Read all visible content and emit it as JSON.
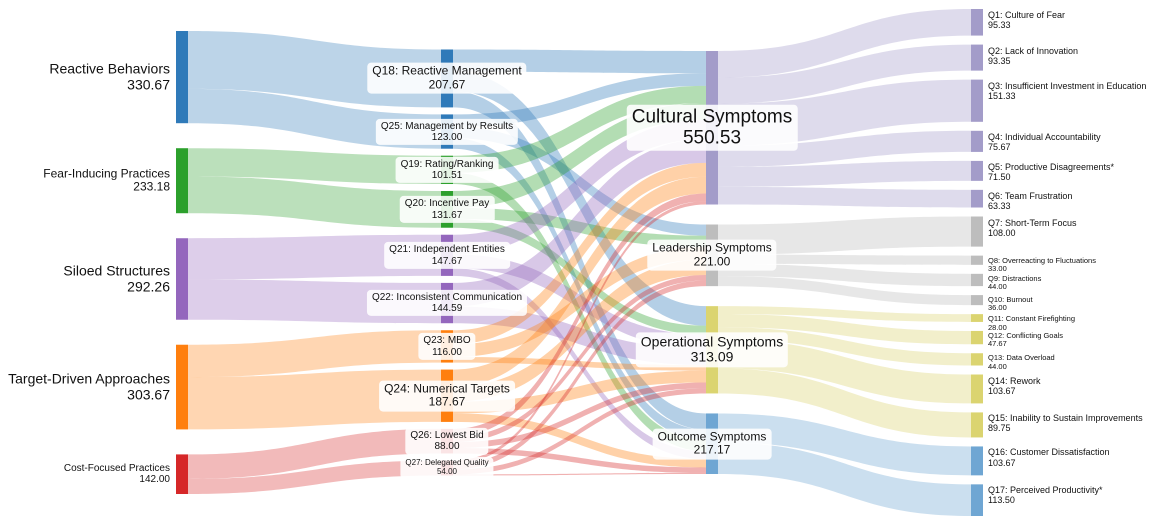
{
  "chart_data": {
    "type": "sankey",
    "title": "",
    "colors": {
      "blue": "#2f7ab9",
      "green": "#2ca02c",
      "purple": "#9467bd",
      "orange": "#ff7f0e",
      "red": "#d62728",
      "cultural": "#a39cc9",
      "leadership": "#bdbdbd",
      "operational": "#dbd470",
      "outcome": "#6fa6d3"
    },
    "nodes": [
      {
        "id": "rb",
        "name": "Reactive Behaviors",
        "value": "330.67",
        "column": 0,
        "color": "blue"
      },
      {
        "id": "fi",
        "name": "Fear-Inducing Practices",
        "value": "233.18",
        "column": 0,
        "color": "green"
      },
      {
        "id": "ss",
        "name": "Siloed Structures",
        "value": "292.26",
        "column": 0,
        "color": "purple"
      },
      {
        "id": "td",
        "name": "Target-Driven Approaches",
        "value": "303.67",
        "column": 0,
        "color": "orange"
      },
      {
        "id": "cf",
        "name": "Cost-Focused Practices",
        "value": "142.00",
        "column": 0,
        "color": "red"
      },
      {
        "id": "q18",
        "name": "Q18: Reactive Management",
        "value": "207.67",
        "column": 1,
        "color": "blue"
      },
      {
        "id": "q25",
        "name": "Q25: Management by Results",
        "value": "123.00",
        "column": 1,
        "color": "blue"
      },
      {
        "id": "q19",
        "name": "Q19: Rating/Ranking",
        "value": "101.51",
        "column": 1,
        "color": "green"
      },
      {
        "id": "q20",
        "name": "Q20: Incentive Pay",
        "value": "131.67",
        "column": 1,
        "color": "green"
      },
      {
        "id": "q21",
        "name": "Q21: Independent Entities",
        "value": "147.67",
        "column": 1,
        "color": "purple"
      },
      {
        "id": "q22",
        "name": "Q22: Inconsistent Communication",
        "value": "144.59",
        "column": 1,
        "color": "purple"
      },
      {
        "id": "q23",
        "name": "Q23: MBO",
        "value": "116.00",
        "column": 1,
        "color": "orange"
      },
      {
        "id": "q24",
        "name": "Q24: Numerical Targets",
        "value": "187.67",
        "column": 1,
        "color": "orange"
      },
      {
        "id": "q26",
        "name": "Q26: Lowest Bid",
        "value": "88.00",
        "column": 1,
        "color": "red"
      },
      {
        "id": "q27",
        "name": "Q27: Delegated Quality",
        "value": "54.00",
        "column": 1,
        "color": "red"
      },
      {
        "id": "cs",
        "name": "Cultural Symptoms",
        "value": "550.53",
        "column": 2,
        "color": "cultural"
      },
      {
        "id": "ls",
        "name": "Leadership Symptoms",
        "value": "221.00",
        "column": 2,
        "color": "leadership"
      },
      {
        "id": "os",
        "name": "Operational Symptoms",
        "value": "313.09",
        "column": 2,
        "color": "operational"
      },
      {
        "id": "oc",
        "name": "Outcome Symptoms",
        "value": "217.17",
        "column": 2,
        "color": "outcome"
      },
      {
        "id": "q1",
        "name": "Q1: Culture of Fear",
        "value": "95.33",
        "column": 3,
        "color": "cultural"
      },
      {
        "id": "q2",
        "name": "Q2: Lack of Innovation",
        "value": "93.35",
        "column": 3,
        "color": "cultural"
      },
      {
        "id": "q3",
        "name": "Q3: Insufficient Investment in Education",
        "value": "151.33",
        "column": 3,
        "color": "cultural"
      },
      {
        "id": "q4",
        "name": "Q4: Individual Accountability",
        "value": "75.67",
        "column": 3,
        "color": "cultural"
      },
      {
        "id": "q5",
        "name": "Q5: Productive Disagreements*",
        "value": "71.50",
        "column": 3,
        "color": "cultural"
      },
      {
        "id": "q6",
        "name": "Q6: Team Frustration",
        "value": "63.33",
        "column": 3,
        "color": "cultural"
      },
      {
        "id": "q7",
        "name": "Q7: Short-Term Focus",
        "value": "108.00",
        "column": 3,
        "color": "leadership"
      },
      {
        "id": "q8",
        "name": "Q8: Overreacting to Fluctuations",
        "value": "33.00",
        "column": 3,
        "color": "leadership"
      },
      {
        "id": "q9",
        "name": "Q9: Distractions",
        "value": "44.00",
        "column": 3,
        "color": "leadership"
      },
      {
        "id": "q10",
        "name": "Q10: Burnout",
        "value": "36.00",
        "column": 3,
        "color": "leadership"
      },
      {
        "id": "q11",
        "name": "Q11: Constant Firefighting",
        "value": "28.00",
        "column": 3,
        "color": "operational"
      },
      {
        "id": "q12",
        "name": "Q12: Conflicting Goals",
        "value": "47.67",
        "column": 3,
        "color": "operational"
      },
      {
        "id": "q13",
        "name": "Q13: Data Overload",
        "value": "44.00",
        "column": 3,
        "color": "operational"
      },
      {
        "id": "q14",
        "name": "Q14: Rework",
        "value": "103.67",
        "column": 3,
        "color": "operational"
      },
      {
        "id": "q15",
        "name": "Q15: Inability to Sustain Improvements",
        "value": "89.75",
        "column": 3,
        "color": "operational"
      },
      {
        "id": "q16",
        "name": "Q16: Customer Dissatisfaction",
        "value": "103.67",
        "column": 3,
        "color": "outcome"
      },
      {
        "id": "q17",
        "name": "Q17: Perceived Productivity*",
        "value": "113.50",
        "column": 3,
        "color": "outcome"
      }
    ],
    "links": [
      {
        "source": "rb",
        "target": "q18",
        "value": 207.67
      },
      {
        "source": "rb",
        "target": "q25",
        "value": 123.0
      },
      {
        "source": "fi",
        "target": "q19",
        "value": 101.51
      },
      {
        "source": "fi",
        "target": "q20",
        "value": 131.67
      },
      {
        "source": "ss",
        "target": "q21",
        "value": 147.67
      },
      {
        "source": "ss",
        "target": "q22",
        "value": 144.59
      },
      {
        "source": "td",
        "target": "q23",
        "value": 116.0
      },
      {
        "source": "td",
        "target": "q24",
        "value": 187.67
      },
      {
        "source": "cf",
        "target": "q26",
        "value": 88.0
      },
      {
        "source": "cf",
        "target": "q27",
        "value": 54.0
      },
      {
        "source": "q18",
        "target": "cs",
        "value": 80
      },
      {
        "source": "q18",
        "target": "os",
        "value": 70
      },
      {
        "source": "q18",
        "target": "oc",
        "value": 57.67
      },
      {
        "source": "q25",
        "target": "cs",
        "value": 45
      },
      {
        "source": "q25",
        "target": "ls",
        "value": 40
      },
      {
        "source": "q25",
        "target": "oc",
        "value": 38
      },
      {
        "source": "q19",
        "target": "cs",
        "value": 61.51
      },
      {
        "source": "q19",
        "target": "oc",
        "value": 40
      },
      {
        "source": "q20",
        "target": "cs",
        "value": 60
      },
      {
        "source": "q20",
        "target": "ls",
        "value": 40
      },
      {
        "source": "q20",
        "target": "os",
        "value": 31.67
      },
      {
        "source": "q21",
        "target": "cs",
        "value": 70
      },
      {
        "source": "q21",
        "target": "os",
        "value": 50
      },
      {
        "source": "q21",
        "target": "oc",
        "value": 27.67
      },
      {
        "source": "q22",
        "target": "cs",
        "value": 84.59
      },
      {
        "source": "q22",
        "target": "os",
        "value": 60
      },
      {
        "source": "q23",
        "target": "cs",
        "value": 50
      },
      {
        "source": "q23",
        "target": "ls",
        "value": 46
      },
      {
        "source": "q23",
        "target": "os",
        "value": 20
      },
      {
        "source": "q24",
        "target": "cs",
        "value": 60
      },
      {
        "source": "q24",
        "target": "ls",
        "value": 55
      },
      {
        "source": "q24",
        "target": "os",
        "value": 42.25
      },
      {
        "source": "q24",
        "target": "oc",
        "value": 30.42
      },
      {
        "source": "q26",
        "target": "cs",
        "value": 27.43
      },
      {
        "source": "q26",
        "target": "ls",
        "value": 20
      },
      {
        "source": "q26",
        "target": "os",
        "value": 21.17
      },
      {
        "source": "q26",
        "target": "oc",
        "value": 19.4
      },
      {
        "source": "q27",
        "target": "cs",
        "value": 12
      },
      {
        "source": "q27",
        "target": "ls",
        "value": 20
      },
      {
        "source": "q27",
        "target": "os",
        "value": 18
      },
      {
        "source": "q27",
        "target": "oc",
        "value": 4
      },
      {
        "source": "cs",
        "target": "q1",
        "value": 95.33
      },
      {
        "source": "cs",
        "target": "q2",
        "value": 93.35
      },
      {
        "source": "cs",
        "target": "q3",
        "value": 151.33
      },
      {
        "source": "cs",
        "target": "q4",
        "value": 75.67
      },
      {
        "source": "cs",
        "target": "q5",
        "value": 71.5
      },
      {
        "source": "cs",
        "target": "q6",
        "value": 63.33
      },
      {
        "source": "ls",
        "target": "q7",
        "value": 108.0
      },
      {
        "source": "ls",
        "target": "q8",
        "value": 33.0
      },
      {
        "source": "ls",
        "target": "q9",
        "value": 44.0
      },
      {
        "source": "ls",
        "target": "q10",
        "value": 36.0
      },
      {
        "source": "os",
        "target": "q11",
        "value": 28.0
      },
      {
        "source": "os",
        "target": "q12",
        "value": 47.67
      },
      {
        "source": "os",
        "target": "q13",
        "value": 44.0
      },
      {
        "source": "os",
        "target": "q14",
        "value": 103.67
      },
      {
        "source": "os",
        "target": "q15",
        "value": 89.75
      },
      {
        "source": "oc",
        "target": "q16",
        "value": 103.67
      },
      {
        "source": "oc",
        "target": "q17",
        "value": 113.5
      }
    ]
  }
}
